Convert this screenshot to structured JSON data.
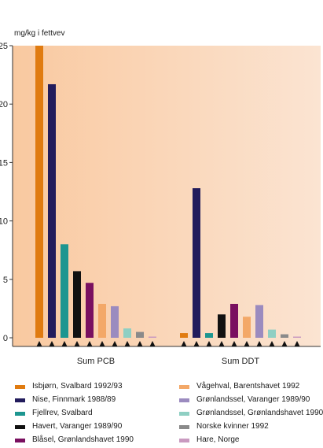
{
  "chart_data": {
    "type": "bar",
    "ylabel": "mg/kg i fettvev",
    "ylim": [
      0,
      25
    ],
    "yticks": [
      0,
      5,
      10,
      15,
      20,
      25
    ],
    "grid": false,
    "legend_placement": "bottom",
    "categories": [
      "Sum PCB",
      "Sum DDT"
    ],
    "series": [
      {
        "name": "Isbjørn, Svalbard 1992/93",
        "color": "#e07b10",
        "values": [
          25.0,
          0.4
        ]
      },
      {
        "name": "Nise, Finnmark 1988/89",
        "color": "#221c5c",
        "values": [
          21.7,
          12.8
        ]
      },
      {
        "name": "Fjellrev, Svalbard",
        "color": "#1d9690",
        "values": [
          8.0,
          0.4
        ]
      },
      {
        "name": "Havert, Varanger 1989/90",
        "color": "#111111",
        "values": [
          5.7,
          2.0
        ]
      },
      {
        "name": "Blåsel, Grønlandshavet 1990",
        "color": "#7a1060",
        "values": [
          4.7,
          2.9
        ]
      },
      {
        "name": "Vågehval, Barentshavet 1992",
        "color": "#f3a868",
        "values": [
          2.9,
          1.8
        ]
      },
      {
        "name": "Grønlandssel, Varanger 1989/90",
        "color": "#9b8bbf",
        "values": [
          2.7,
          2.8
        ]
      },
      {
        "name": "Grønlandssel, Grønlandshavet 1990",
        "color": "#8fcfc3",
        "values": [
          0.8,
          0.7
        ]
      },
      {
        "name": "Norske kvinner 1992",
        "color": "#8a8a8a",
        "values": [
          0.5,
          0.3
        ]
      },
      {
        "name": "Hare, Norge",
        "color": "#c99ac0",
        "values": [
          0.1,
          0.1
        ]
      }
    ]
  },
  "colors": {
    "background_left": "#f9c9a0",
    "background_right": "#fbe4d2"
  }
}
